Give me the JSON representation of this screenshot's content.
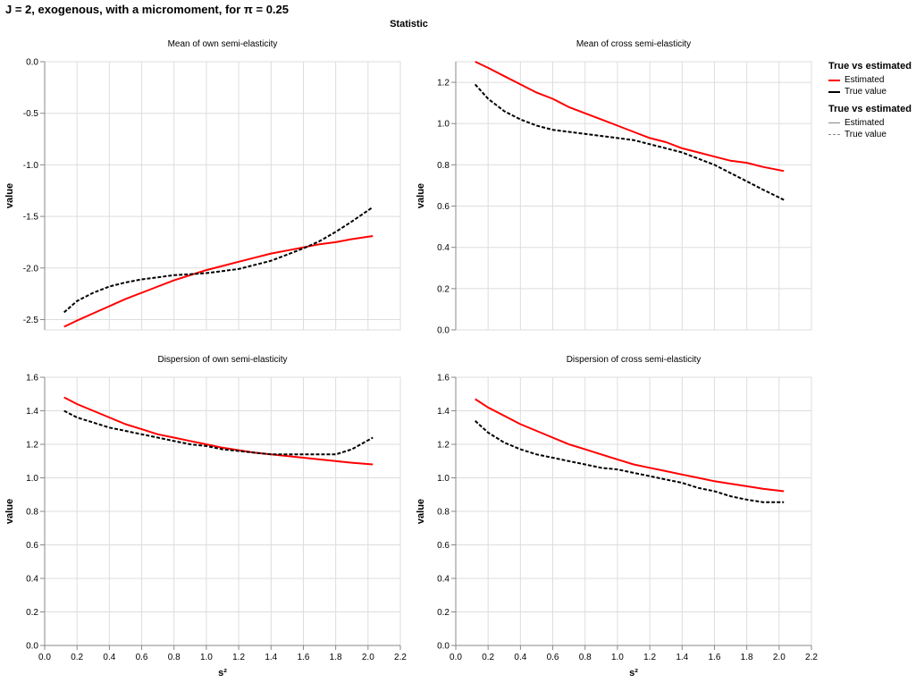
{
  "header": {
    "title": "J = 2, exogenous, with a micromoment,  for π = 0.25",
    "column_title": "Statistic"
  },
  "colors": {
    "estimated": "#ff0000",
    "true_value": "#000000",
    "grid": "#dddddd",
    "axis": "#888888"
  },
  "legends": [
    {
      "title": "True vs estimated",
      "items": [
        {
          "label": "Estimated",
          "color": "#ff0000",
          "style": "solid"
        },
        {
          "label": "True value",
          "color": "#000000",
          "style": "solid"
        }
      ]
    },
    {
      "title": "True vs estimated",
      "items": [
        {
          "label": "Estimated",
          "color": "#888888",
          "style": "solid"
        },
        {
          "label": "True value",
          "color": "#888888",
          "style": "dashed"
        }
      ]
    }
  ],
  "chart_data": [
    {
      "type": "line",
      "title": "Mean of own semi-elasticity",
      "xlabel": "",
      "ylabel": "value",
      "xlim": [
        0.0,
        2.2
      ],
      "ylim": [
        -2.6,
        0.0
      ],
      "xticks": [],
      "yticks": [
        "0.0",
        "-0.5",
        "-1.0",
        "-1.5",
        "-2.0",
        "-2.5"
      ],
      "ytick_values": [
        0.0,
        -0.5,
        -1.0,
        -1.5,
        -2.0,
        -2.5
      ],
      "x": [
        0.12,
        0.2,
        0.3,
        0.4,
        0.5,
        0.6,
        0.7,
        0.8,
        0.9,
        1.0,
        1.1,
        1.2,
        1.3,
        1.4,
        1.5,
        1.6,
        1.7,
        1.8,
        1.9,
        2.03
      ],
      "series": [
        {
          "name": "Estimated",
          "color": "#ff0000",
          "dash": false,
          "values": [
            -2.57,
            -2.51,
            -2.44,
            -2.37,
            -2.3,
            -2.24,
            -2.18,
            -2.12,
            -2.07,
            -2.02,
            -1.98,
            -1.94,
            -1.9,
            -1.86,
            -1.83,
            -1.8,
            -1.77,
            -1.75,
            -1.72,
            -1.69
          ]
        },
        {
          "name": "True value",
          "color": "#000000",
          "dash": true,
          "values": [
            -2.43,
            -2.32,
            -2.24,
            -2.18,
            -2.14,
            -2.11,
            -2.09,
            -2.07,
            -2.06,
            -2.05,
            -2.03,
            -2.01,
            -1.97,
            -1.93,
            -1.87,
            -1.81,
            -1.74,
            -1.65,
            -1.55,
            -1.41
          ]
        }
      ]
    },
    {
      "type": "line",
      "title": "Mean of cross semi-elasticity",
      "xlabel": "",
      "ylabel": "value",
      "xlim": [
        0.0,
        2.2
      ],
      "ylim": [
        0.0,
        1.3
      ],
      "xticks": [],
      "yticks": [
        "0.0",
        "0.2",
        "0.4",
        "0.6",
        "0.8",
        "1.0",
        "1.2"
      ],
      "ytick_values": [
        0.0,
        0.2,
        0.4,
        0.6,
        0.8,
        1.0,
        1.2
      ],
      "x": [
        0.12,
        0.2,
        0.3,
        0.4,
        0.5,
        0.6,
        0.7,
        0.8,
        0.9,
        1.0,
        1.1,
        1.2,
        1.3,
        1.4,
        1.5,
        1.6,
        1.7,
        1.8,
        1.9,
        2.03
      ],
      "series": [
        {
          "name": "Estimated",
          "color": "#ff0000",
          "dash": false,
          "values": [
            1.3,
            1.27,
            1.23,
            1.19,
            1.15,
            1.12,
            1.08,
            1.05,
            1.02,
            0.99,
            0.96,
            0.93,
            0.91,
            0.88,
            0.86,
            0.84,
            0.82,
            0.81,
            0.79,
            0.77
          ]
        },
        {
          "name": "True value",
          "color": "#000000",
          "dash": true,
          "values": [
            1.19,
            1.12,
            1.06,
            1.02,
            0.99,
            0.97,
            0.96,
            0.95,
            0.94,
            0.93,
            0.92,
            0.9,
            0.88,
            0.86,
            0.83,
            0.8,
            0.76,
            0.72,
            0.68,
            0.63
          ]
        }
      ]
    },
    {
      "type": "line",
      "title": "Dispersion of own semi-elasticity",
      "xlabel": "s²",
      "ylabel": "value",
      "xlim": [
        0.0,
        2.2
      ],
      "ylim": [
        0.0,
        1.6
      ],
      "xticks": [
        "0.0",
        "0.2",
        "0.4",
        "0.6",
        "0.8",
        "1.0",
        "1.2",
        "1.4",
        "1.6",
        "1.8",
        "2.0",
        "2.2"
      ],
      "xtick_values": [
        0.0,
        0.2,
        0.4,
        0.6,
        0.8,
        1.0,
        1.2,
        1.4,
        1.6,
        1.8,
        2.0,
        2.2
      ],
      "yticks": [
        "0.0",
        "0.2",
        "0.4",
        "0.6",
        "0.8",
        "1.0",
        "1.2",
        "1.4",
        "1.6"
      ],
      "ytick_values": [
        0.0,
        0.2,
        0.4,
        0.6,
        0.8,
        1.0,
        1.2,
        1.4,
        1.6
      ],
      "x": [
        0.12,
        0.2,
        0.3,
        0.4,
        0.5,
        0.6,
        0.7,
        0.8,
        0.9,
        1.0,
        1.1,
        1.2,
        1.3,
        1.4,
        1.5,
        1.6,
        1.7,
        1.8,
        1.9,
        2.03
      ],
      "series": [
        {
          "name": "Estimated",
          "color": "#ff0000",
          "dash": false,
          "values": [
            1.48,
            1.44,
            1.4,
            1.36,
            1.32,
            1.29,
            1.26,
            1.24,
            1.22,
            1.2,
            1.18,
            1.165,
            1.15,
            1.14,
            1.13,
            1.12,
            1.11,
            1.1,
            1.09,
            1.08
          ]
        },
        {
          "name": "True value",
          "color": "#000000",
          "dash": true,
          "values": [
            1.4,
            1.36,
            1.33,
            1.3,
            1.28,
            1.26,
            1.24,
            1.22,
            1.2,
            1.19,
            1.17,
            1.16,
            1.15,
            1.14,
            1.14,
            1.14,
            1.14,
            1.14,
            1.17,
            1.24
          ]
        }
      ]
    },
    {
      "type": "line",
      "title": "Dispersion of cross semi-elasticity",
      "xlabel": "s²",
      "ylabel": "value",
      "xlim": [
        0.0,
        2.2
      ],
      "ylim": [
        0.0,
        1.6
      ],
      "xticks": [
        "0.0",
        "0.2",
        "0.4",
        "0.6",
        "0.8",
        "1.0",
        "1.2",
        "1.4",
        "1.6",
        "1.8",
        "2.0",
        "2.2"
      ],
      "xtick_values": [
        0.0,
        0.2,
        0.4,
        0.6,
        0.8,
        1.0,
        1.2,
        1.4,
        1.6,
        1.8,
        2.0,
        2.2
      ],
      "yticks": [
        "0.0",
        "0.2",
        "0.4",
        "0.6",
        "0.8",
        "1.0",
        "1.2",
        "1.4",
        "1.6"
      ],
      "ytick_values": [
        0.0,
        0.2,
        0.4,
        0.6,
        0.8,
        1.0,
        1.2,
        1.4,
        1.6
      ],
      "x": [
        0.12,
        0.2,
        0.3,
        0.4,
        0.5,
        0.6,
        0.7,
        0.8,
        0.9,
        1.0,
        1.1,
        1.2,
        1.3,
        1.4,
        1.5,
        1.6,
        1.7,
        1.8,
        1.9,
        2.03
      ],
      "series": [
        {
          "name": "Estimated",
          "color": "#ff0000",
          "dash": false,
          "values": [
            1.47,
            1.42,
            1.37,
            1.32,
            1.28,
            1.24,
            1.2,
            1.17,
            1.14,
            1.11,
            1.08,
            1.06,
            1.04,
            1.02,
            1.0,
            0.98,
            0.965,
            0.95,
            0.935,
            0.92
          ]
        },
        {
          "name": "True value",
          "color": "#000000",
          "dash": true,
          "values": [
            1.34,
            1.27,
            1.21,
            1.17,
            1.14,
            1.12,
            1.1,
            1.08,
            1.06,
            1.05,
            1.03,
            1.01,
            0.99,
            0.97,
            0.94,
            0.92,
            0.89,
            0.87,
            0.855,
            0.855
          ]
        }
      ]
    }
  ]
}
